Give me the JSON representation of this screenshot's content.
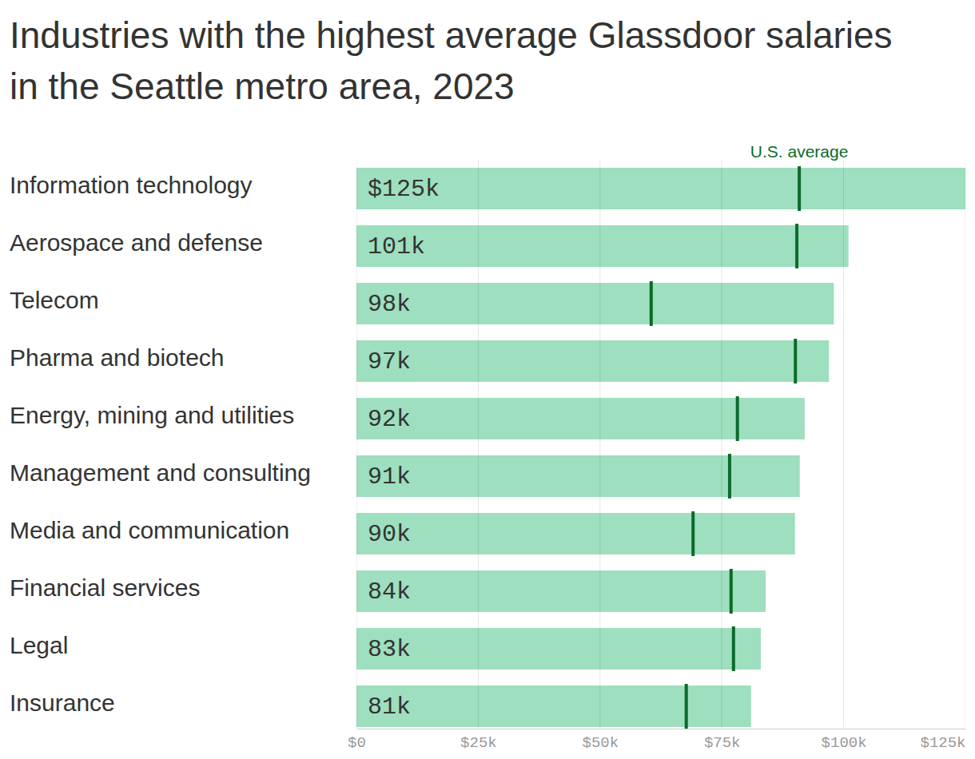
{
  "chart_data": {
    "type": "bar",
    "title": "Industries with the highest average Glassdoor salaries in the Seattle metro area, 2023",
    "orientation": "horizontal",
    "data_labels": true,
    "grid": true,
    "categories": [
      "Information technology",
      "Aerospace and defense",
      "Telecom",
      "Pharma and biotech",
      "Energy, mining and utilities",
      "Management and consulting",
      "Media and communication",
      "Financial services",
      "Legal",
      "Insurance"
    ],
    "series": [
      {
        "color": "#9ddfbe",
        "values": [
          125000,
          101000,
          98000,
          97000,
          92000,
          91000,
          90000,
          84000,
          83000,
          81000
        ],
        "value_labels": [
          "$125k",
          "101k",
          "98k",
          "97k",
          "92k",
          "91k",
          "90k",
          "84k",
          "83k",
          "81k"
        ]
      },
      {
        "name": "U.S. average",
        "marker": "line",
        "color": "#0b6b2a",
        "values": [
          90900,
          90400,
          60500,
          90100,
          78200,
          76600,
          69100,
          76900,
          77400,
          67700
        ]
      }
    ],
    "xlim": [
      0,
      125000
    ],
    "xticks": [
      {
        "value": 0,
        "label": "$0"
      },
      {
        "value": 25000,
        "label": "$25k"
      },
      {
        "value": 50000,
        "label": "$50k"
      },
      {
        "value": 75000,
        "label": "$75k"
      },
      {
        "value": 100000,
        "label": "$100k"
      },
      {
        "value": 125000,
        "label": "$125k"
      }
    ]
  }
}
